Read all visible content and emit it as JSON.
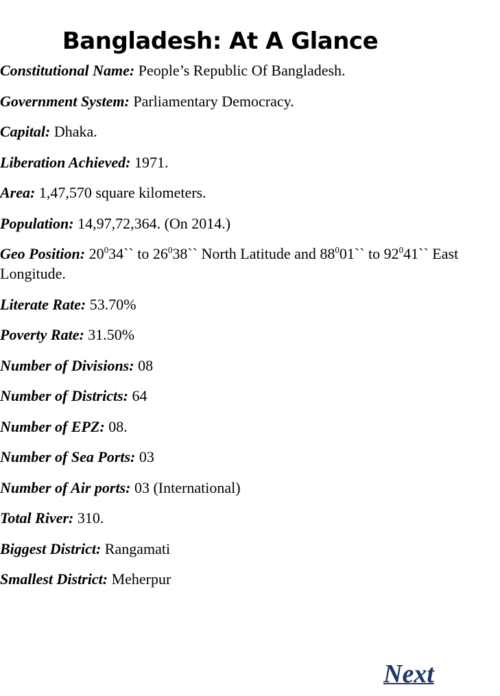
{
  "title": "Bangladesh: At A Glance",
  "facts": [
    {
      "label": "Constitutional Name:",
      "value": "People’s Republic Of Bangladesh."
    },
    {
      "label": "Government System:",
      "value": "Parliamentary Democracy."
    },
    {
      "label": "Capital:",
      "value": "Dhaka."
    },
    {
      "label": "Liberation Achieved:",
      "value": "1971."
    },
    {
      "label": "Area:",
      "value": "1,47,570 square kilometers."
    },
    {
      "label": "Population:",
      "value": "14,97,72,364. (On 2014.)"
    },
    {
      "label": "Literate Rate:",
      "value": "53.70%"
    },
    {
      "label": "Poverty Rate:",
      "value": "31.50%"
    },
    {
      "label": "Number of Divisions:",
      "value": "08"
    },
    {
      "label": "Number of Districts:",
      "value": "64"
    },
    {
      "label": "Number of EPZ:",
      "value": "08."
    },
    {
      "label": "Number of Sea Ports:",
      "value": "03"
    },
    {
      "label": "Number of Air ports:",
      "value": "03 (International)"
    },
    {
      "label": "Total River:",
      "value": "310."
    },
    {
      "label": "Biggest District:",
      "value": "Rangamati"
    },
    {
      "label": "Smallest District:",
      "value": "Meherpur"
    }
  ],
  "geo": {
    "label": "Geo Position:",
    "lat_from_deg": "20",
    "lat_from_min": "34`` to 26",
    "lat_to_min": "38`` North Latitude and 88",
    "lon_from_min": "01`` to 92",
    "lon_to_min": "41`` East Longitude.",
    "deg_mark": "0"
  },
  "nav": {
    "next_label": "Next"
  }
}
